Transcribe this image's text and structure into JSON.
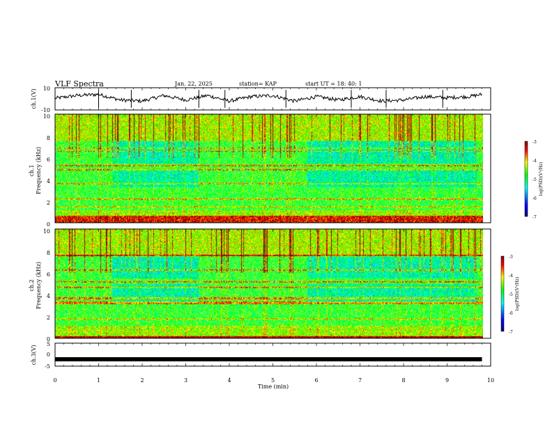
{
  "header": {
    "title": "VLF Spectra",
    "date": "Jan. 22, 2025",
    "station": "station= KAP",
    "start_ut": "start UT =  18: 40: 1"
  },
  "chart_data": [
    {
      "type": "line",
      "panel": "ch1-waveform",
      "ylabel": "ch.1(V)",
      "ylim": [
        -10,
        10
      ],
      "ytick_labels": [
        "10",
        "-10"
      ],
      "xlim": [
        0,
        10
      ],
      "series": [
        {
          "x": [
            0,
            0.5,
            1,
            1.5,
            2,
            2.5,
            3,
            3.5,
            4,
            4.5,
            5,
            5.5,
            6,
            6.5,
            7,
            7.5,
            8,
            8.5,
            9,
            9.5,
            9.8
          ],
          "values": [
            0.5,
            3,
            4,
            -1,
            -2,
            3,
            -1,
            3,
            -2,
            2,
            3,
            -2,
            2,
            -1,
            2,
            -2,
            -1,
            2,
            1,
            2,
            4
          ]
        }
      ]
    },
    {
      "type": "heatmap",
      "panel": "ch1-spectrogram",
      "ylabel_top": "ch.1",
      "ylabel": "Frequency (kHz)",
      "ylim": [
        0,
        10
      ],
      "ytick_labels": [
        "0",
        "2",
        "4",
        "6",
        "8",
        "10"
      ],
      "xlim": [
        0,
        9.85
      ],
      "colorbar": {
        "label": "log(PSD)(V²/Hz)",
        "range": [
          -7,
          -3
        ],
        "tick_labels": [
          "-3",
          "-4",
          "-5",
          "-6",
          "-7"
        ]
      }
    },
    {
      "type": "heatmap",
      "panel": "ch2-spectrogram",
      "ylabel_top": "ch.2",
      "ylabel": "Frequency (kHz)",
      "ylim": [
        0,
        10
      ],
      "ytick_labels": [
        "0",
        "2",
        "4",
        "6",
        "8",
        "10"
      ],
      "xlim": [
        0,
        9.85
      ],
      "colorbar": {
        "label": "log(PSD)(V²/Hz)",
        "range": [
          -7,
          -3
        ],
        "tick_labels": [
          "-3",
          "-4",
          "-5",
          "-6",
          "-7"
        ]
      }
    },
    {
      "type": "line",
      "panel": "ch3-waveform",
      "ylabel": "ch.3(V)",
      "ylim": [
        -5,
        5
      ],
      "ytick_labels": [
        "5",
        "0",
        "-5"
      ],
      "xlim": [
        0,
        10
      ],
      "series": [
        {
          "x": [
            0,
            9.8
          ],
          "values": [
            -2,
            -2
          ]
        }
      ]
    }
  ],
  "xaxis": {
    "label": "Time (min)",
    "range": [
      0,
      10
    ],
    "tick_labels": [
      "0",
      "1",
      "2",
      "3",
      "4",
      "5",
      "6",
      "7",
      "8",
      "9",
      "10"
    ]
  },
  "colormap": [
    "#000080",
    "#0000ff",
    "#00ffff",
    "#00ff00",
    "#ffff00",
    "#ff0000",
    "#800000"
  ]
}
